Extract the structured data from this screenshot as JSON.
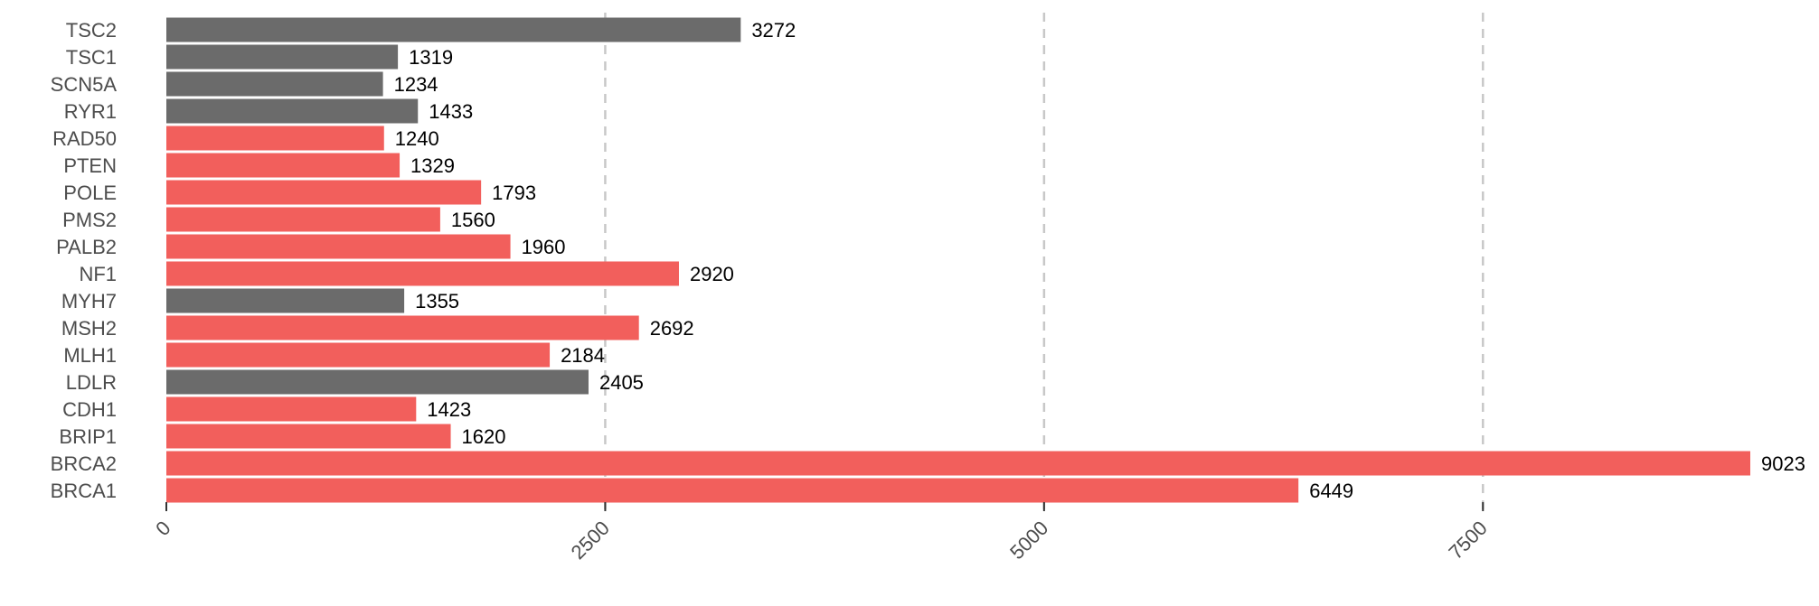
{
  "chart_data": {
    "type": "bar",
    "orientation": "horizontal",
    "categories": [
      "TSC2",
      "TSC1",
      "SCN5A",
      "RYR1",
      "RAD50",
      "PTEN",
      "POLE",
      "PMS2",
      "PALB2",
      "NF1",
      "MYH7",
      "MSH2",
      "MLH1",
      "LDLR",
      "CDH1",
      "BRIP1",
      "BRCA2",
      "BRCA1"
    ],
    "values": [
      3272,
      1319,
      1234,
      1433,
      1240,
      1329,
      1793,
      1560,
      1960,
      2920,
      1355,
      2692,
      2184,
      2405,
      1423,
      1620,
      9023,
      6449
    ],
    "value_labels": [
      "3272",
      "1319",
      "1234",
      "1433",
      "1240",
      "1329",
      "1793",
      "1560",
      "1960",
      "2920",
      "1355",
      "2692",
      "2184",
      "2405",
      "1423",
      "1620",
      "9023",
      "6449"
    ],
    "bar_colors": [
      "#6b6b6b",
      "#6b6b6b",
      "#6b6b6b",
      "#6b6b6b",
      "#f25f5c",
      "#f25f5c",
      "#f25f5c",
      "#f25f5c",
      "#f25f5c",
      "#f25f5c",
      "#6b6b6b",
      "#f25f5c",
      "#f25f5c",
      "#6b6b6b",
      "#f25f5c",
      "#f25f5c",
      "#f25f5c",
      "#f25f5c"
    ],
    "xticks": [
      0,
      2500,
      5000,
      7500
    ],
    "xtick_labels": [
      "0",
      "2500",
      "5000",
      "7500"
    ],
    "xlim": [
      0,
      9023
    ],
    "title": "",
    "xlabel": "",
    "ylabel": "",
    "grid": "vertical dashed",
    "legend": "none"
  }
}
